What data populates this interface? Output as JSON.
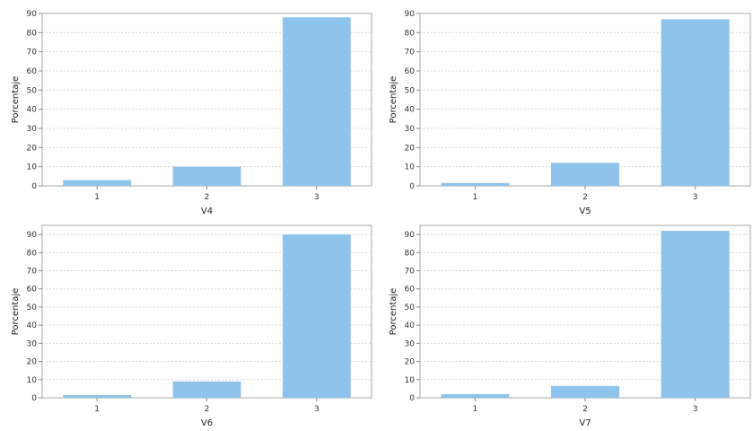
{
  "chart_data": [
    {
      "type": "bar",
      "categories": [
        "1",
        "2",
        "3"
      ],
      "values": [
        3,
        10,
        88
      ],
      "xlabel": "V4",
      "ylabel": "Porcentaje",
      "ylim": [
        0,
        90
      ],
      "yticks": [
        0,
        10,
        20,
        30,
        40,
        50,
        60,
        70,
        80,
        90
      ],
      "grid": true,
      "bar_color": "#8ec4ec"
    },
    {
      "type": "bar",
      "categories": [
        "1",
        "2",
        "3"
      ],
      "values": [
        1.5,
        12,
        87
      ],
      "xlabel": "V5",
      "ylabel": "Porcentaje",
      "ylim": [
        0,
        90
      ],
      "yticks": [
        0,
        10,
        20,
        30,
        40,
        50,
        60,
        70,
        80,
        90
      ],
      "grid": true,
      "bar_color": "#8ec4ec"
    },
    {
      "type": "bar",
      "categories": [
        "1",
        "2",
        "3"
      ],
      "values": [
        1.5,
        9,
        90
      ],
      "xlabel": "V6",
      "ylabel": "Porcentaje",
      "ylim": [
        0,
        95
      ],
      "yticks": [
        0,
        10,
        20,
        30,
        40,
        50,
        60,
        70,
        80,
        90
      ],
      "grid": true,
      "bar_color": "#8ec4ec"
    },
    {
      "type": "bar",
      "categories": [
        "1",
        "2",
        "3"
      ],
      "values": [
        2,
        6.5,
        92
      ],
      "xlabel": "V7",
      "ylabel": "Porcentaje",
      "ylim": [
        0,
        95
      ],
      "yticks": [
        0,
        10,
        20,
        30,
        40,
        50,
        60,
        70,
        80,
        90
      ],
      "grid": true,
      "bar_color": "#8ec4ec"
    }
  ]
}
